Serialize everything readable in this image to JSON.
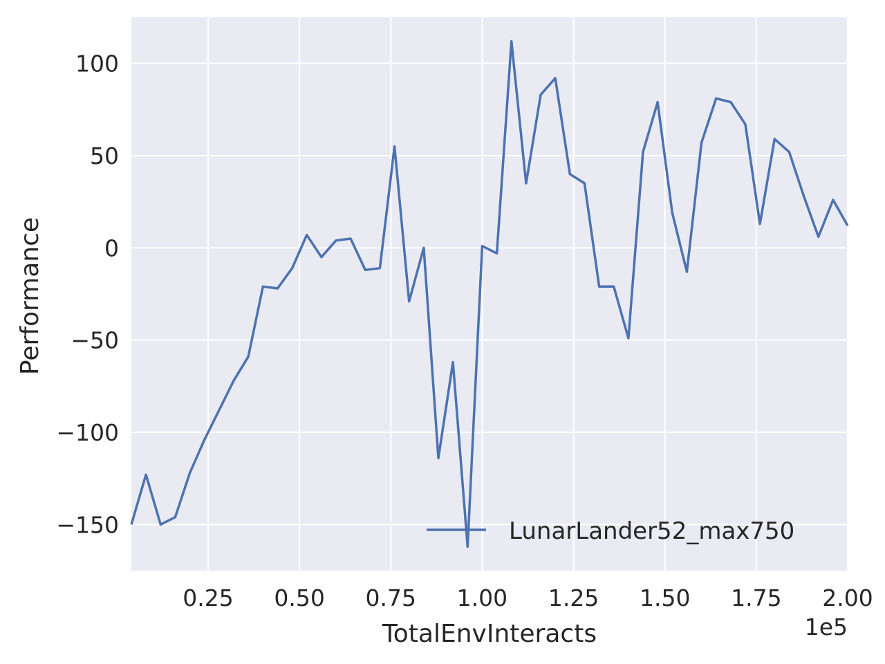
{
  "chart_data": {
    "type": "line",
    "title": "",
    "xlabel": "TotalEnvInteracts",
    "ylabel": "Performance",
    "x_offset_label": "1e5",
    "xlim": [
      0.04,
      2.0
    ],
    "ylim": [
      -175,
      125
    ],
    "x_ticks": [
      0.25,
      0.5,
      0.75,
      1.0,
      1.25,
      1.5,
      1.75,
      2.0
    ],
    "x_tick_labels": [
      "0.25",
      "0.50",
      "0.75",
      "1.00",
      "1.25",
      "1.50",
      "1.75",
      "2.00"
    ],
    "y_ticks": [
      -150,
      -100,
      -50,
      0,
      50,
      100
    ],
    "y_tick_labels": [
      "−150",
      "−100",
      "−50",
      "0",
      "50",
      "100"
    ],
    "grid": true,
    "legend_position": "lower-right",
    "colors": {
      "line": "#4c72b0",
      "plot_bg": "#eaeaf2",
      "grid": "#ffffff"
    },
    "series": [
      {
        "name": "LunarLander52_max750",
        "x": [
          0.04,
          0.08,
          0.12,
          0.16,
          0.2,
          0.24,
          0.28,
          0.32,
          0.36,
          0.4,
          0.44,
          0.48,
          0.52,
          0.56,
          0.6,
          0.64,
          0.68,
          0.72,
          0.76,
          0.8,
          0.84,
          0.88,
          0.92,
          0.96,
          1.0,
          1.04,
          1.08,
          1.12,
          1.16,
          1.2,
          1.24,
          1.28,
          1.32,
          1.36,
          1.4,
          1.44,
          1.48,
          1.52,
          1.56,
          1.6,
          1.64,
          1.68,
          1.72,
          1.76,
          1.8,
          1.84,
          1.88,
          1.92,
          1.96,
          2.0
        ],
        "values": [
          -150,
          -123,
          -150,
          -146,
          -122,
          -104,
          -88,
          -72,
          -59,
          -21,
          -22,
          -11,
          7,
          -5,
          4,
          5,
          -12,
          -11,
          55,
          -29,
          0,
          -114,
          -62,
          -162,
          1,
          -3,
          112,
          35,
          83,
          92,
          40,
          35,
          -21,
          -21,
          -49,
          52,
          79,
          19,
          -13,
          57,
          81,
          79,
          67,
          13,
          59,
          52,
          28,
          6,
          26,
          12
        ]
      }
    ]
  }
}
